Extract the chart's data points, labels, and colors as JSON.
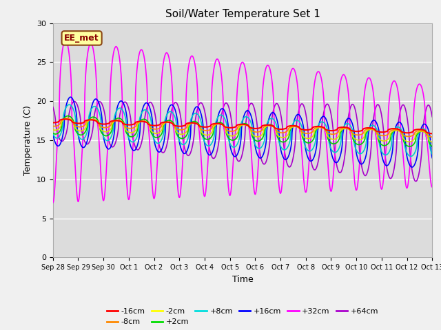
{
  "title": "Soil/Water Temperature Set 1",
  "xlabel": "Time",
  "ylabel": "Temperature (C)",
  "ylim": [
    0,
    30
  ],
  "background_color": "#dcdcdc",
  "annotation_text": "EE_met",
  "annotation_bg": "#ffffa0",
  "annotation_border": "#8b4513",
  "tick_labels": [
    "Sep 28",
    "Sep 29",
    "Sep 30",
    "Oct 1",
    "Oct 2",
    "Oct 3",
    "Oct 4",
    "Oct 5",
    "Oct 6",
    "Oct 7",
    "Oct 8",
    "Oct 9",
    "Oct 10",
    "Oct 11",
    "Oct 12",
    "Oct 13"
  ],
  "legend_entries": [
    {
      "label": "-16cm",
      "color": "#ff0000"
    },
    {
      "label": "-8cm",
      "color": "#ff8800"
    },
    {
      "label": "-2cm",
      "color": "#ffff00"
    },
    {
      "label": "+2cm",
      "color": "#00dd00"
    },
    {
      "label": "+8cm",
      "color": "#00dddd"
    },
    {
      "label": "+16cm",
      "color": "#0000ff"
    },
    {
      "label": "+32cm",
      "color": "#ff00ff"
    },
    {
      "label": "+64cm",
      "color": "#aa00cc"
    }
  ]
}
